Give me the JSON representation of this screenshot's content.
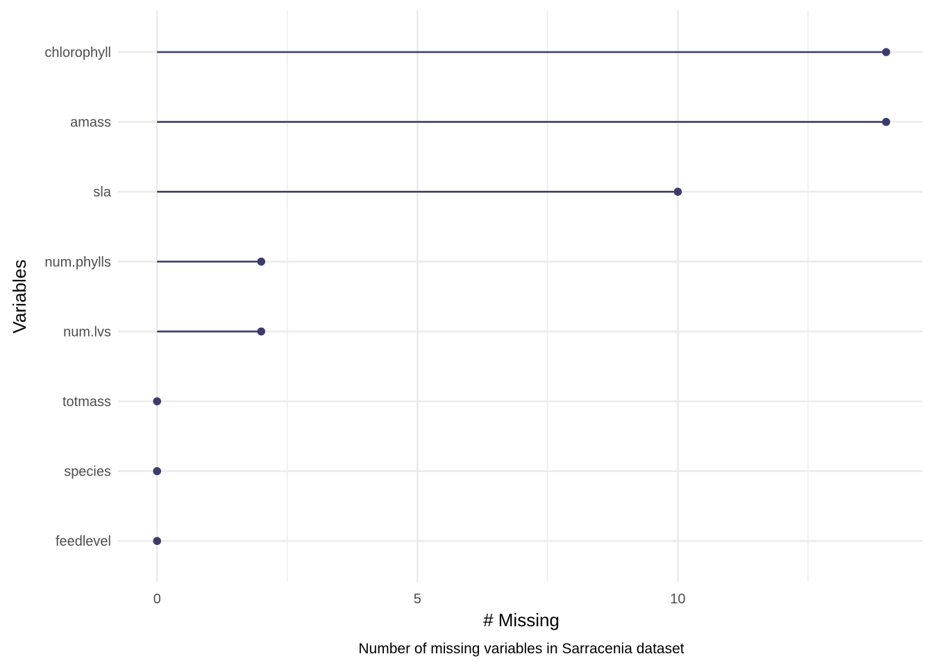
{
  "chart_data": {
    "type": "lollipop",
    "title": "",
    "xlabel": "# Missing",
    "ylabel": "Variables",
    "caption": "Number of missing variables in Sarracenia dataset",
    "categories": [
      "chlorophyll",
      "amass",
      "sla",
      "num.phylls",
      "num.lvs",
      "totmass",
      "species",
      "feedlevel"
    ],
    "values": [
      14,
      14,
      10,
      2,
      2,
      0,
      0,
      0
    ],
    "xlim": [
      -0.75,
      14.7
    ],
    "x_ticks": [
      0,
      5,
      10
    ],
    "x_tick_labels": [
      "0",
      "5",
      "10"
    ],
    "x_minor_ticks": [
      2.5,
      7.5,
      12.5
    ],
    "grid": true,
    "legend": "none",
    "colors": {
      "series": "#3b3c6b",
      "grid": "#ebebeb",
      "tick_text": "#4d4d4d",
      "title_text": "#000000"
    }
  }
}
